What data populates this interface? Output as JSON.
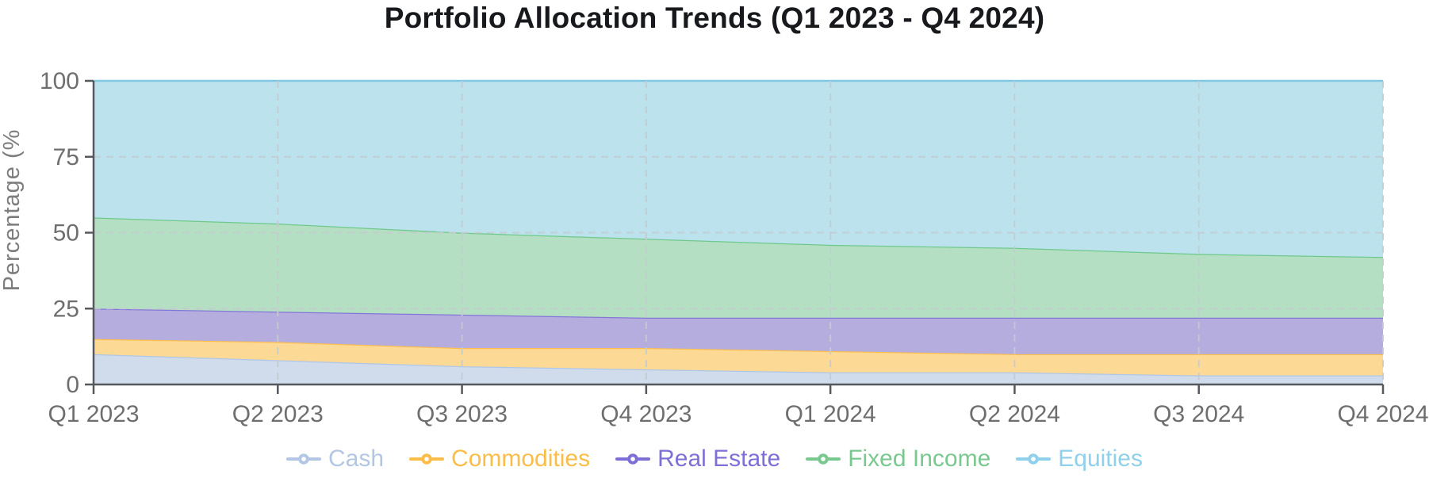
{
  "title": "Portfolio Allocation Trends (Q1 2023 - Q4 2024)",
  "chart_data": {
    "type": "area",
    "stacked": true,
    "title": "Portfolio Allocation Trends (Q1 2023 - Q4 2024)",
    "xlabel": "",
    "ylabel": "Percentage (%",
    "ylim": [
      0,
      100
    ],
    "yticks": [
      0,
      25,
      50,
      75,
      100
    ],
    "grid": "dashed",
    "legend_position": "bottom",
    "categories": [
      "Q1 2023",
      "Q2 2023",
      "Q3 2023",
      "Q4 2023",
      "Q1 2024",
      "Q2 2024",
      "Q3 2024",
      "Q4 2024"
    ],
    "series": [
      {
        "id": "cash",
        "name": "Cash",
        "values": [
          10,
          8,
          6,
          5,
          4,
          4,
          3,
          3
        ],
        "color": "#aec7e8",
        "fill": "#d0dcec",
        "legend_color": "#b3c6e3"
      },
      {
        "id": "commodities",
        "name": "Commodities",
        "values": [
          5,
          6,
          6,
          7,
          7,
          6,
          7,
          7
        ],
        "color": "#fbbf4f",
        "fill": "#fdd996",
        "legend_color": "#fbbd4a"
      },
      {
        "id": "real-estate",
        "name": "Real Estate",
        "values": [
          10,
          10,
          11,
          10,
          11,
          12,
          12,
          12
        ],
        "color": "#8476d8",
        "fill": "#b6addf",
        "legend_color": "#7e6fd6"
      },
      {
        "id": "fixed-income",
        "name": "Fixed Income",
        "values": [
          30,
          29,
          27,
          26,
          24,
          23,
          21,
          20
        ],
        "color": "#6ec98b",
        "fill": "#b4dfc2",
        "legend_color": "#79c890"
      },
      {
        "id": "equities",
        "name": "Equities",
        "values": [
          45,
          47,
          50,
          52,
          54,
          55,
          57,
          58
        ],
        "color": "#82c7e2",
        "fill": "#bce2ee",
        "legend_color": "#8fd0ea"
      }
    ],
    "axis_color": "#55585c",
    "grid_color": "#c3cbd0",
    "tick_text_color": "#6e6e6e"
  }
}
